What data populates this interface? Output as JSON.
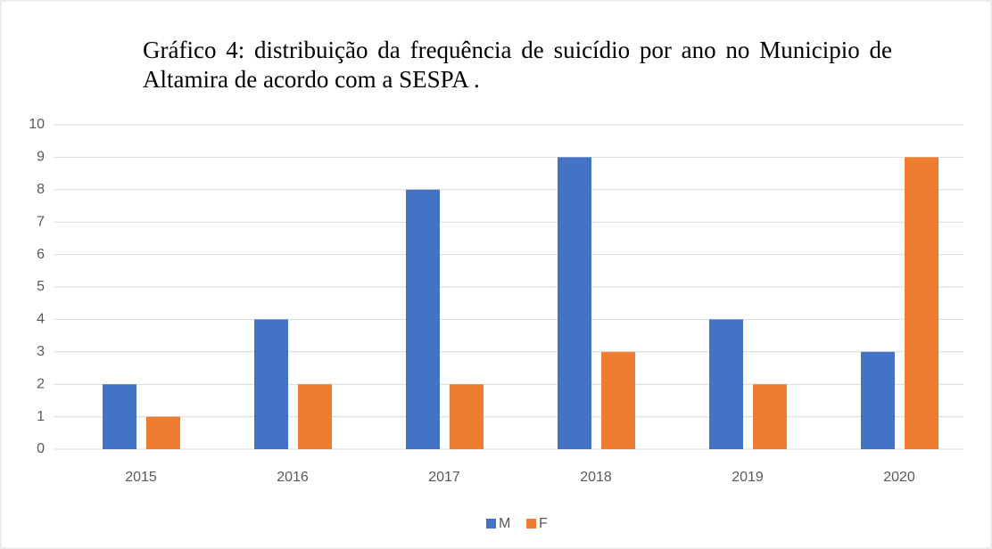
{
  "chart_data": {
    "type": "bar",
    "title": "Gráfico 4:  distribuição da frequência de suicídio por ano no Municipio de Altamira de acordo com a SESPA .",
    "categories": [
      "2015",
      "2016",
      "2017",
      "2018",
      "2019",
      "2020"
    ],
    "series": [
      {
        "name": "M",
        "color": "#4472c4",
        "values": [
          2,
          4,
          8,
          9,
          4,
          3
        ]
      },
      {
        "name": "F",
        "color": "#ed7d31",
        "values": [
          1,
          2,
          2,
          3,
          2,
          9
        ]
      }
    ],
    "ylim": [
      0,
      10
    ],
    "yticks": [
      0,
      1,
      2,
      3,
      4,
      5,
      6,
      7,
      8,
      9,
      10
    ],
    "grid": true,
    "legend": "bottom"
  }
}
